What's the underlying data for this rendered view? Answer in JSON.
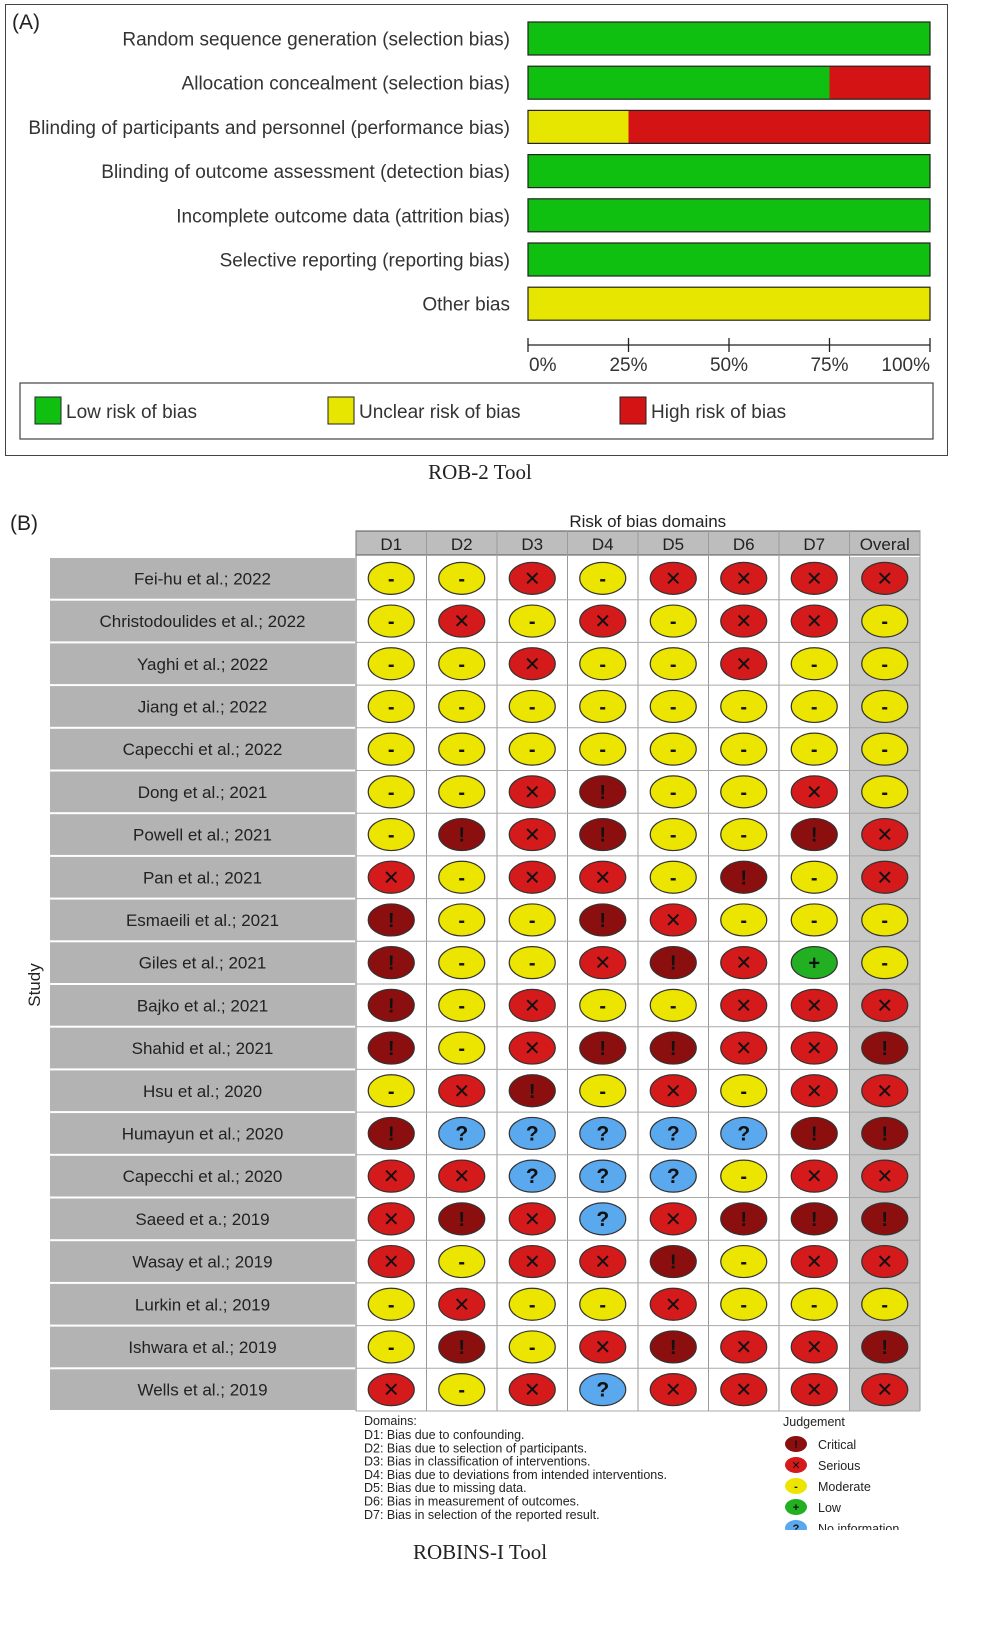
{
  "panel_a": {
    "tag": "(A)",
    "caption": "ROB-2 Tool",
    "legend": [
      {
        "label": "Low risk of bias",
        "color": "#10c010"
      },
      {
        "label": "Unclear risk of bias",
        "color": "#e6e600"
      },
      {
        "label": "High risk of bias",
        "color": "#d41414"
      }
    ]
  },
  "panel_b": {
    "tag": "(B)",
    "caption": "ROBINS-I Tool",
    "domains_title": "Risk of bias domains",
    "study_axis": "Study",
    "domains_header": "Domains:",
    "domain_descriptions": [
      "D1: Bias due to confounding.",
      "D2: Bias due to selection of participants.",
      "D3: Bias in classification of interventions.",
      "D4: Bias due to deviations from intended interventions.",
      "D5: Bias due to missing data.",
      "D6: Bias in measurement of outcomes.",
      "D7: Bias in selection of the reported result."
    ],
    "judgement_title": "Judgement",
    "judgements": [
      {
        "key": "C",
        "label": "Critical",
        "symbol": "!",
        "color": "#8b0f0f"
      },
      {
        "key": "S",
        "label": "Serious",
        "symbol": "×",
        "color": "#d41a1a"
      },
      {
        "key": "M",
        "label": "Moderate",
        "symbol": "-",
        "color": "#ece500"
      },
      {
        "key": "L",
        "label": "Low",
        "symbol": "+",
        "color": "#22b022"
      },
      {
        "key": "N",
        "label": "No information",
        "symbol": "?",
        "color": "#5aa8ee"
      }
    ]
  },
  "chart_data": [
    {
      "type": "bar",
      "stacked": true,
      "orientation": "horizontal",
      "categories": [
        "Random sequence generation (selection bias)",
        "Allocation concealment (selection bias)",
        "Blinding of participants and personnel (performance bias)",
        "Blinding of outcome assessment (detection bias)",
        "Incomplete outcome data (attrition bias)",
        "Selective reporting (reporting bias)",
        "Other bias"
      ],
      "series": [
        {
          "name": "Low risk of bias",
          "color": "#10c010",
          "values": [
            100,
            75,
            0,
            100,
            100,
            100,
            0
          ]
        },
        {
          "name": "Unclear risk of bias",
          "color": "#e6e600",
          "values": [
            0,
            0,
            25,
            0,
            0,
            0,
            100
          ]
        },
        {
          "name": "High risk of bias",
          "color": "#d41414",
          "values": [
            0,
            25,
            75,
            0,
            0,
            0,
            0
          ]
        }
      ],
      "xlim": [
        0,
        100
      ],
      "xticks": [
        "0%",
        "25%",
        "50%",
        "75%",
        "100%"
      ],
      "legend_position": "bottom"
    },
    {
      "type": "table",
      "title": "Risk of bias domains",
      "columns": [
        "D1",
        "D2",
        "D3",
        "D4",
        "D5",
        "D6",
        "D7",
        "Overal"
      ],
      "row_axis": "Study",
      "rows": [
        {
          "study": "Fei-hu et al.; 2022",
          "values": [
            "M",
            "M",
            "S",
            "M",
            "S",
            "S",
            "S",
            "S"
          ]
        },
        {
          "study": "Christodoulides et al.; 2022",
          "values": [
            "M",
            "S",
            "M",
            "S",
            "M",
            "S",
            "S",
            "M"
          ]
        },
        {
          "study": "Yaghi et al.; 2022",
          "values": [
            "M",
            "M",
            "S",
            "M",
            "M",
            "S",
            "M",
            "M"
          ]
        },
        {
          "study": "Jiang et al.;  2022",
          "values": [
            "M",
            "M",
            "M",
            "M",
            "M",
            "M",
            "M",
            "M"
          ]
        },
        {
          "study": "Capecchi et al.; 2022",
          "values": [
            "M",
            "M",
            "M",
            "M",
            "M",
            "M",
            "M",
            "M"
          ]
        },
        {
          "study": "Dong et al.; 2021",
          "values": [
            "M",
            "M",
            "S",
            "C",
            "M",
            "M",
            "S",
            "M"
          ]
        },
        {
          "study": "Powell et al.; 2021",
          "values": [
            "M",
            "C",
            "S",
            "C",
            "M",
            "M",
            "C",
            "S"
          ]
        },
        {
          "study": "Pan et al.; 2021",
          "values": [
            "S",
            "M",
            "S",
            "S",
            "M",
            "C",
            "M",
            "S"
          ]
        },
        {
          "study": "Esmaeili et al.; 2021",
          "values": [
            "C",
            "M",
            "M",
            "C",
            "S",
            "M",
            "M",
            "M"
          ]
        },
        {
          "study": "Giles et al.; 2021",
          "values": [
            "C",
            "M",
            "M",
            "S",
            "C",
            "S",
            "L",
            "M"
          ]
        },
        {
          "study": "Bajko et al.; 2021",
          "values": [
            "C",
            "M",
            "S",
            "M",
            "M",
            "S",
            "S",
            "S"
          ]
        },
        {
          "study": "Shahid et al.; 2021",
          "values": [
            "C",
            "M",
            "S",
            "C",
            "C",
            "S",
            "S",
            "C"
          ]
        },
        {
          "study": "Hsu et al.; 2020",
          "values": [
            "M",
            "S",
            "C",
            "M",
            "S",
            "M",
            "S",
            "S"
          ]
        },
        {
          "study": "Humayun et al.; 2020",
          "values": [
            "C",
            "N",
            "N",
            "N",
            "N",
            "N",
            "C",
            "C"
          ]
        },
        {
          "study": "Capecchi et al.; 2020",
          "values": [
            "S",
            "S",
            "N",
            "N",
            "N",
            "M",
            "S",
            "S"
          ]
        },
        {
          "study": "Saeed et a.; 2019",
          "values": [
            "S",
            "C",
            "S",
            "N",
            "S",
            "C",
            "C",
            "C"
          ]
        },
        {
          "study": "Wasay et al.; 2019",
          "values": [
            "S",
            "M",
            "S",
            "S",
            "C",
            "M",
            "S",
            "S"
          ]
        },
        {
          "study": "Lurkin et al.; 2019",
          "values": [
            "M",
            "S",
            "M",
            "M",
            "S",
            "M",
            "M",
            "M"
          ]
        },
        {
          "study": "Ishwara et al.; 2019",
          "values": [
            "M",
            "C",
            "M",
            "S",
            "C",
            "S",
            "S",
            "C"
          ]
        },
        {
          "study": "Wells et al.; 2019",
          "values": [
            "S",
            "M",
            "S",
            "N",
            "S",
            "S",
            "S",
            "S"
          ]
        }
      ]
    }
  ]
}
